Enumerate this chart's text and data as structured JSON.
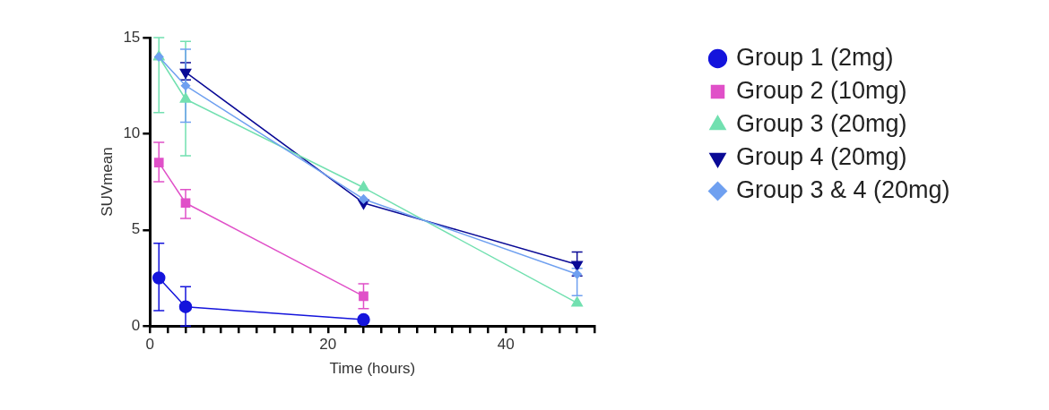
{
  "chart_data": {
    "type": "line",
    "xlabel": "Time (hours)",
    "ylabel": "SUVmean",
    "xlim": [
      0,
      50
    ],
    "ylim": [
      0,
      15
    ],
    "xticks": [
      0,
      {
        "value": 2,
        "label": null
      },
      {
        "value": 4,
        "label": null
      },
      {
        "value": 6,
        "label": null
      },
      {
        "value": 8,
        "label": null
      },
      {
        "value": 10,
        "label": null
      },
      {
        "value": 12,
        "label": null
      },
      {
        "value": 14,
        "label": null
      },
      {
        "value": 16,
        "label": null
      },
      {
        "value": 18,
        "label": null
      },
      20,
      {
        "value": 22,
        "label": null
      },
      {
        "value": 24,
        "label": null
      },
      {
        "value": 26,
        "label": null
      },
      {
        "value": 28,
        "label": null
      },
      {
        "value": 30,
        "label": null
      },
      {
        "value": 32,
        "label": null
      },
      {
        "value": 34,
        "label": null
      },
      {
        "value": 36,
        "label": null
      },
      {
        "value": 38,
        "label": null
      },
      40,
      {
        "value": 42,
        "label": null
      },
      {
        "value": 44,
        "label": null
      },
      {
        "value": 46,
        "label": null
      },
      {
        "value": 48,
        "label": null
      },
      {
        "value": 50,
        "label": null
      }
    ],
    "yticks": [
      0,
      5,
      10,
      15
    ],
    "grid": false,
    "legend": "right",
    "line_style": "solid",
    "series": [
      {
        "name": "Group 1 (2mg)",
        "color": "#1414dc",
        "marker": "circle",
        "x": [
          1,
          4,
          24
        ],
        "values": [
          2.5,
          1.0,
          0.33
        ],
        "errors": [
          [
            0.8,
            4.3
          ],
          [
            0,
            2.05
          ],
          null
        ]
      },
      {
        "name": "Group 2 (10mg)",
        "color": "#e050c8",
        "marker": "square",
        "x": [
          1,
          4,
          24
        ],
        "values": [
          8.5,
          6.4,
          1.55
        ],
        "errors": [
          [
            7.5,
            9.55
          ],
          [
            5.6,
            7.1
          ],
          [
            0.9,
            2.2
          ]
        ]
      },
      {
        "name": "Group 3 (20mg)",
        "color": "#72e0b0",
        "marker": "triangle",
        "x": [
          1,
          4,
          24,
          48
        ],
        "values": [
          14.0,
          11.8,
          7.2,
          1.2
        ],
        "errors": [
          [
            11.1,
            15
          ],
          [
            8.85,
            14.8
          ],
          null,
          null
        ]
      },
      {
        "name": "Group 4 (20mg)",
        "color": "#0a0a96",
        "marker": "triangle-down",
        "x": [
          4,
          24,
          48
        ],
        "values": [
          13.2,
          6.4,
          3.2
        ],
        "errors": [
          [
            12.8,
            13.7
          ],
          null,
          [
            2.6,
            3.85
          ]
        ]
      },
      {
        "name": "Group 3 & 4 (20mg)",
        "color": "#6fa0f0",
        "marker": "diamond",
        "x": [
          1,
          4,
          24,
          48
        ],
        "values": [
          14.0,
          12.5,
          6.6,
          2.7
        ],
        "errors": [
          null,
          [
            10.6,
            14.4
          ],
          null,
          [
            1.58,
            3.0
          ]
        ]
      }
    ]
  }
}
